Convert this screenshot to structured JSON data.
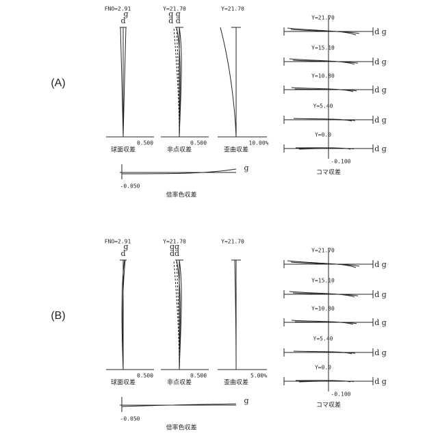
{
  "panels": [
    {
      "label": "(A)",
      "spherical": {
        "fno": "FNO=2.91",
        "line_g": "g",
        "line_d": "d",
        "scale": "0.500",
        "caption": "球面収差"
      },
      "astigmatism": {
        "height": "Y=21.70",
        "lines_top": "g g",
        "lines_bottom": "d d",
        "scale": "0.500",
        "caption": "非点収差"
      },
      "distortion": {
        "height": "Y=21.70",
        "scale": "10.00%",
        "caption": "歪曲収差"
      },
      "lateral_color": {
        "line": "g",
        "scale": "-0.050",
        "caption": "倍率色収差"
      },
      "coma": {
        "heights": [
          "Y=21.70",
          "Y=15.10",
          "Y=10.80",
          "Y=5.40",
          "Y=0.0"
        ],
        "lines": [
          "d g",
          "d g",
          "d g",
          "d g",
          "d g"
        ],
        "scale": "-0.100",
        "caption": "コマ収差"
      }
    },
    {
      "label": "(B)",
      "spherical": {
        "fno": "FNO=2.91",
        "line_g": "g",
        "line_d": "d",
        "scale": "0.500",
        "caption": "球面収差"
      },
      "astigmatism": {
        "height": "Y=21.70",
        "lines_top": "gg",
        "lines_bottom": "dd",
        "scale": "0.500",
        "caption": "非点収差"
      },
      "distortion": {
        "height": "Y=21.70",
        "scale": "5.00%",
        "caption": "歪曲収差"
      },
      "lateral_color": {
        "line": "g",
        "scale": "-0.050",
        "caption": "倍率色収差"
      },
      "coma": {
        "heights": [
          "Y=21.70",
          "Y=15.10",
          "Y=10.80",
          "Y=5.40",
          "Y=0.0"
        ],
        "lines": [
          "d g",
          "d g",
          "d g",
          "d g",
          "d g"
        ],
        "scale": "-0.100",
        "caption": "コマ収差"
      }
    }
  ]
}
